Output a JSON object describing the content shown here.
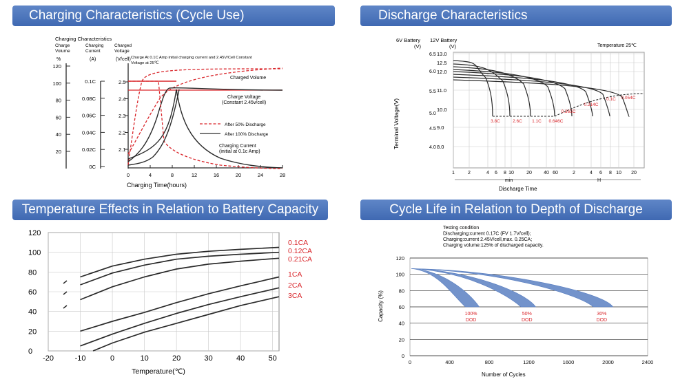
{
  "colors": {
    "header": "#4a74b9",
    "red": "#d9262b",
    "dark": "#2a2a2a",
    "blueband": "#7393cb",
    "grid": "#9a9a9a"
  },
  "chart_data": [
    {
      "id": "charging",
      "type": "line",
      "title": "Charging Characteristics (Cycle Use)",
      "header": "Charging Characteristics",
      "axis_col_titles": {
        "charge_volume": [
          "Charge",
          "Volume"
        ],
        "charging_current": [
          "Charging",
          "Current"
        ],
        "charged_voltage": [
          "Charged",
          "Voltage"
        ]
      },
      "units": {
        "volume": "%",
        "current": "(A)",
        "voltage": "(V/cell)"
      },
      "volume_ticks": [
        "120",
        "100",
        "80",
        "60",
        "40",
        "20"
      ],
      "current_ticks": [
        "0.1C",
        "0.08C",
        "0.06C",
        "0.04C",
        "0.02C",
        "0C"
      ],
      "voltage_ticks": [
        "2.5",
        "2.4",
        "2.3",
        "2.2",
        "2.1"
      ],
      "xlabel": "Charging Time(hours)",
      "x_ticks": [
        0,
        4,
        8,
        12,
        16,
        20,
        24,
        28
      ],
      "xlim": [
        0,
        28
      ],
      "condition_note": [
        "Charge At 0.1C Amp initial charging current and 2.45V/Cell Constant",
        "Voltage  at 25℃"
      ],
      "annotations": {
        "charged_volume": "Charged Volume",
        "charge_voltage": [
          "Charge Voltage",
          "(Constant 2.45v/cell)"
        ],
        "charging_current": [
          "Charging Current",
          "(initial at 0.1c Amp)"
        ]
      },
      "legend": {
        "after50": "After 50% Discharge",
        "after100": "After 100% Discharge"
      }
    },
    {
      "id": "discharge",
      "type": "line",
      "title": "Discharge Characteristics",
      "col_6v": "6V Battery",
      "col_12v": "12V Battery",
      "unit_v": "(V)",
      "ylabel": "Terminal Voltage(V)",
      "temperature": "Temperature 25℃",
      "y6_ticks": [
        "6.5",
        "6.0",
        "5.5",
        "5.0",
        "4.5",
        "4.0"
      ],
      "y12_ticks": [
        "13.0",
        "12.5",
        "12.0",
        "11.0",
        "10.0",
        "9.0",
        "8.0"
      ],
      "x_min_ticks": [
        "1",
        "2",
        "4",
        "6",
        "8",
        "10",
        "20",
        "40",
        "60"
      ],
      "x_h_ticks": [
        "2",
        "4",
        "6",
        "8",
        "10",
        "20"
      ],
      "unit_min": "min",
      "unit_h": "H",
      "xlabel": "Discharge Time",
      "rates": [
        "3.8C",
        "2.6C",
        "1.1C",
        "0.646C",
        "0.365C",
        "0.214C",
        "0.1C",
        "0.054C"
      ]
    },
    {
      "id": "temperature",
      "type": "line",
      "title": "Temperature Effects in Relation to Battery Capacity",
      "xlabel": "Temperature(℃)",
      "x_ticks": [
        "-20",
        "-10",
        "0",
        "10",
        "20",
        "30",
        "40",
        "50"
      ],
      "y_ticks": [
        "120",
        "100",
        "80",
        "60",
        "40",
        "20",
        "0"
      ],
      "xlim": [
        -20,
        52
      ],
      "ylim": [
        0,
        120
      ],
      "series": [
        {
          "name": "0.1CA",
          "x": [
            -10,
            0,
            10,
            20,
            30,
            40,
            52
          ],
          "y": [
            75,
            86,
            93,
            98,
            101,
            103,
            105
          ]
        },
        {
          "name": "0.12CA",
          "x": [
            -10,
            0,
            10,
            20,
            30,
            40,
            52
          ],
          "y": [
            67,
            79,
            87,
            93,
            96,
            98,
            100
          ]
        },
        {
          "name": "0.21CA",
          "x": [
            -10,
            0,
            10,
            20,
            30,
            40,
            52
          ],
          "y": [
            52,
            65,
            75,
            83,
            88,
            91,
            94
          ]
        },
        {
          "name": "1CA",
          "x": [
            -10,
            0,
            10,
            20,
            30,
            40,
            52
          ],
          "y": [
            20,
            30,
            39,
            49,
            58,
            66,
            75
          ]
        },
        {
          "name": "2CA",
          "x": [
            -10,
            0,
            10,
            20,
            30,
            40,
            52
          ],
          "y": [
            5,
            17,
            28,
            38,
            47,
            55,
            64
          ]
        },
        {
          "name": "3CA",
          "x": [
            -6,
            0,
            10,
            20,
            30,
            40,
            52
          ],
          "y": [
            0,
            8,
            19,
            28,
            37,
            46,
            55
          ]
        }
      ]
    },
    {
      "id": "cyclelife",
      "type": "area",
      "title": "Cycle Life in Relation to Depth of Discharge",
      "conditions": [
        "Testing condition",
        "Discharging:current 0.17C (FV 1.7V/cell);",
        "Charging:current 2.45V/cell,max. 0.25CA;",
        "Charging volume:125% of discharged capacity."
      ],
      "xlabel": "Number of Cycles",
      "ylabel": "Capacity (%)",
      "x_ticks": [
        "0",
        "400",
        "800",
        "1200",
        "1600",
        "2000",
        "2400"
      ],
      "y_ticks": [
        "120",
        "100",
        "80",
        "60",
        "40",
        "20",
        "0"
      ],
      "xlim": [
        0,
        2400
      ],
      "ylim": [
        0,
        120
      ],
      "bands": [
        {
          "name": "100% DOD",
          "label_pct": "100%",
          "label_dod": "DOD",
          "end_cycles": [
            560,
            700
          ]
        },
        {
          "name": "50% DOD",
          "label_pct": "50%",
          "label_dod": "DOD",
          "end_cycles": [
            1120,
            1270
          ]
        },
        {
          "name": "30% DOD",
          "label_pct": "30%",
          "label_dod": "DOD",
          "end_cycles": [
            1850,
            2050
          ]
        }
      ]
    }
  ]
}
